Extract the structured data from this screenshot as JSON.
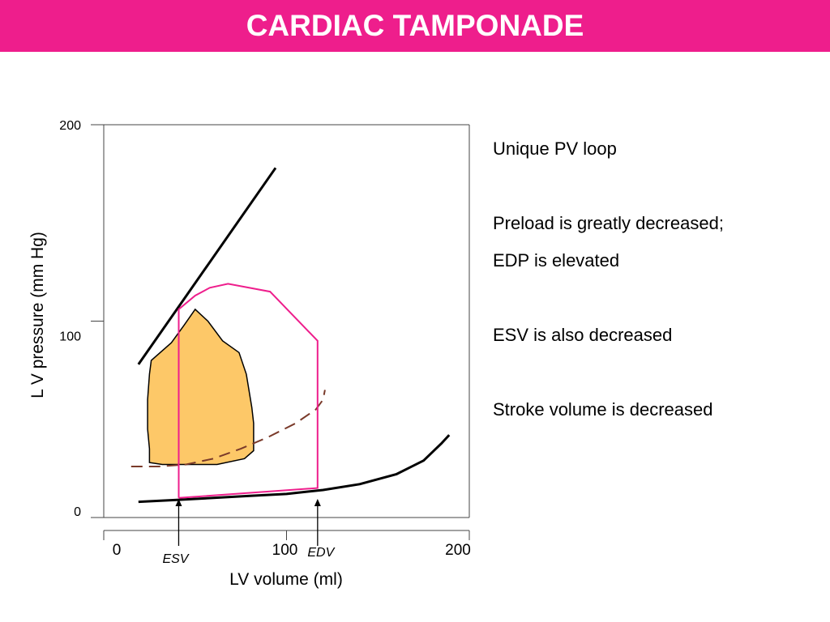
{
  "slide": {
    "title": "CARDIAC TAMPONADE",
    "header_color": "#ee1e8c"
  },
  "notes": [
    "Unique PV loop",
    "Preload is greatly decreased;",
    "EDP is elevated",
    "ESV is also decreased",
    "Stroke volume is decreased"
  ],
  "chart_data": {
    "type": "line",
    "title": "",
    "xlabel": "LV volume (ml)",
    "ylabel": "L V  pressure (mm Hg)",
    "xlim": [
      0,
      200
    ],
    "ylim": [
      0,
      200
    ],
    "x_ticks": [
      0,
      100,
      200
    ],
    "y_ticks": [
      0,
      100,
      200
    ],
    "grid": false,
    "legend": "none",
    "series": [
      {
        "kind": "end-systolic-pvr",
        "color": "#000000",
        "points": [
          [
            19,
            78
          ],
          [
            94,
            178
          ]
        ]
      },
      {
        "kind": "normal-edpvr",
        "color": "#000000",
        "points": [
          [
            19,
            8
          ],
          [
            40,
            9
          ],
          [
            60,
            10
          ],
          [
            80,
            11
          ],
          [
            100,
            12
          ],
          [
            120,
            14
          ],
          [
            140,
            17
          ],
          [
            160,
            22
          ],
          [
            175,
            29
          ],
          [
            185,
            38
          ],
          [
            189,
            42
          ]
        ]
      },
      {
        "kind": "tamponade-edpvr",
        "color": "#7a3a2a",
        "points": [
          [
            15,
            26
          ],
          [
            30,
            26
          ],
          [
            45,
            27
          ],
          [
            60,
            30
          ],
          [
            75,
            35
          ],
          [
            90,
            41
          ],
          [
            105,
            48
          ],
          [
            116,
            55
          ],
          [
            120,
            60
          ],
          [
            121,
            65
          ]
        ]
      },
      {
        "kind": "normal-pv-loop",
        "color": "#ee1e8c",
        "points": [
          [
            41,
            10
          ],
          [
            117,
            15
          ],
          [
            117,
            90
          ],
          [
            91,
            115
          ],
          [
            68,
            119
          ],
          [
            58,
            117
          ],
          [
            50,
            113
          ],
          [
            41,
            106
          ],
          [
            41,
            10
          ]
        ]
      },
      {
        "kind": "tamponade-pv-loop",
        "color": "#000000",
        "fill": "#fdc868",
        "points": [
          [
            40,
            27
          ],
          [
            62,
            27
          ],
          [
            77,
            30
          ],
          [
            82,
            34
          ],
          [
            82,
            48
          ],
          [
            81,
            56
          ],
          [
            78,
            73
          ],
          [
            74,
            84
          ],
          [
            65,
            90
          ],
          [
            57,
            100
          ],
          [
            50,
            106
          ],
          [
            44,
            98
          ],
          [
            37,
            89
          ],
          [
            26,
            80
          ],
          [
            25,
            73
          ],
          [
            24,
            60
          ],
          [
            24,
            45
          ],
          [
            25,
            35
          ],
          [
            25,
            28
          ],
          [
            32,
            27
          ],
          [
            40,
            27
          ]
        ]
      }
    ],
    "markers": [
      {
        "label": "ESV",
        "x": 41
      },
      {
        "label": "EDV",
        "x": 117
      }
    ]
  }
}
